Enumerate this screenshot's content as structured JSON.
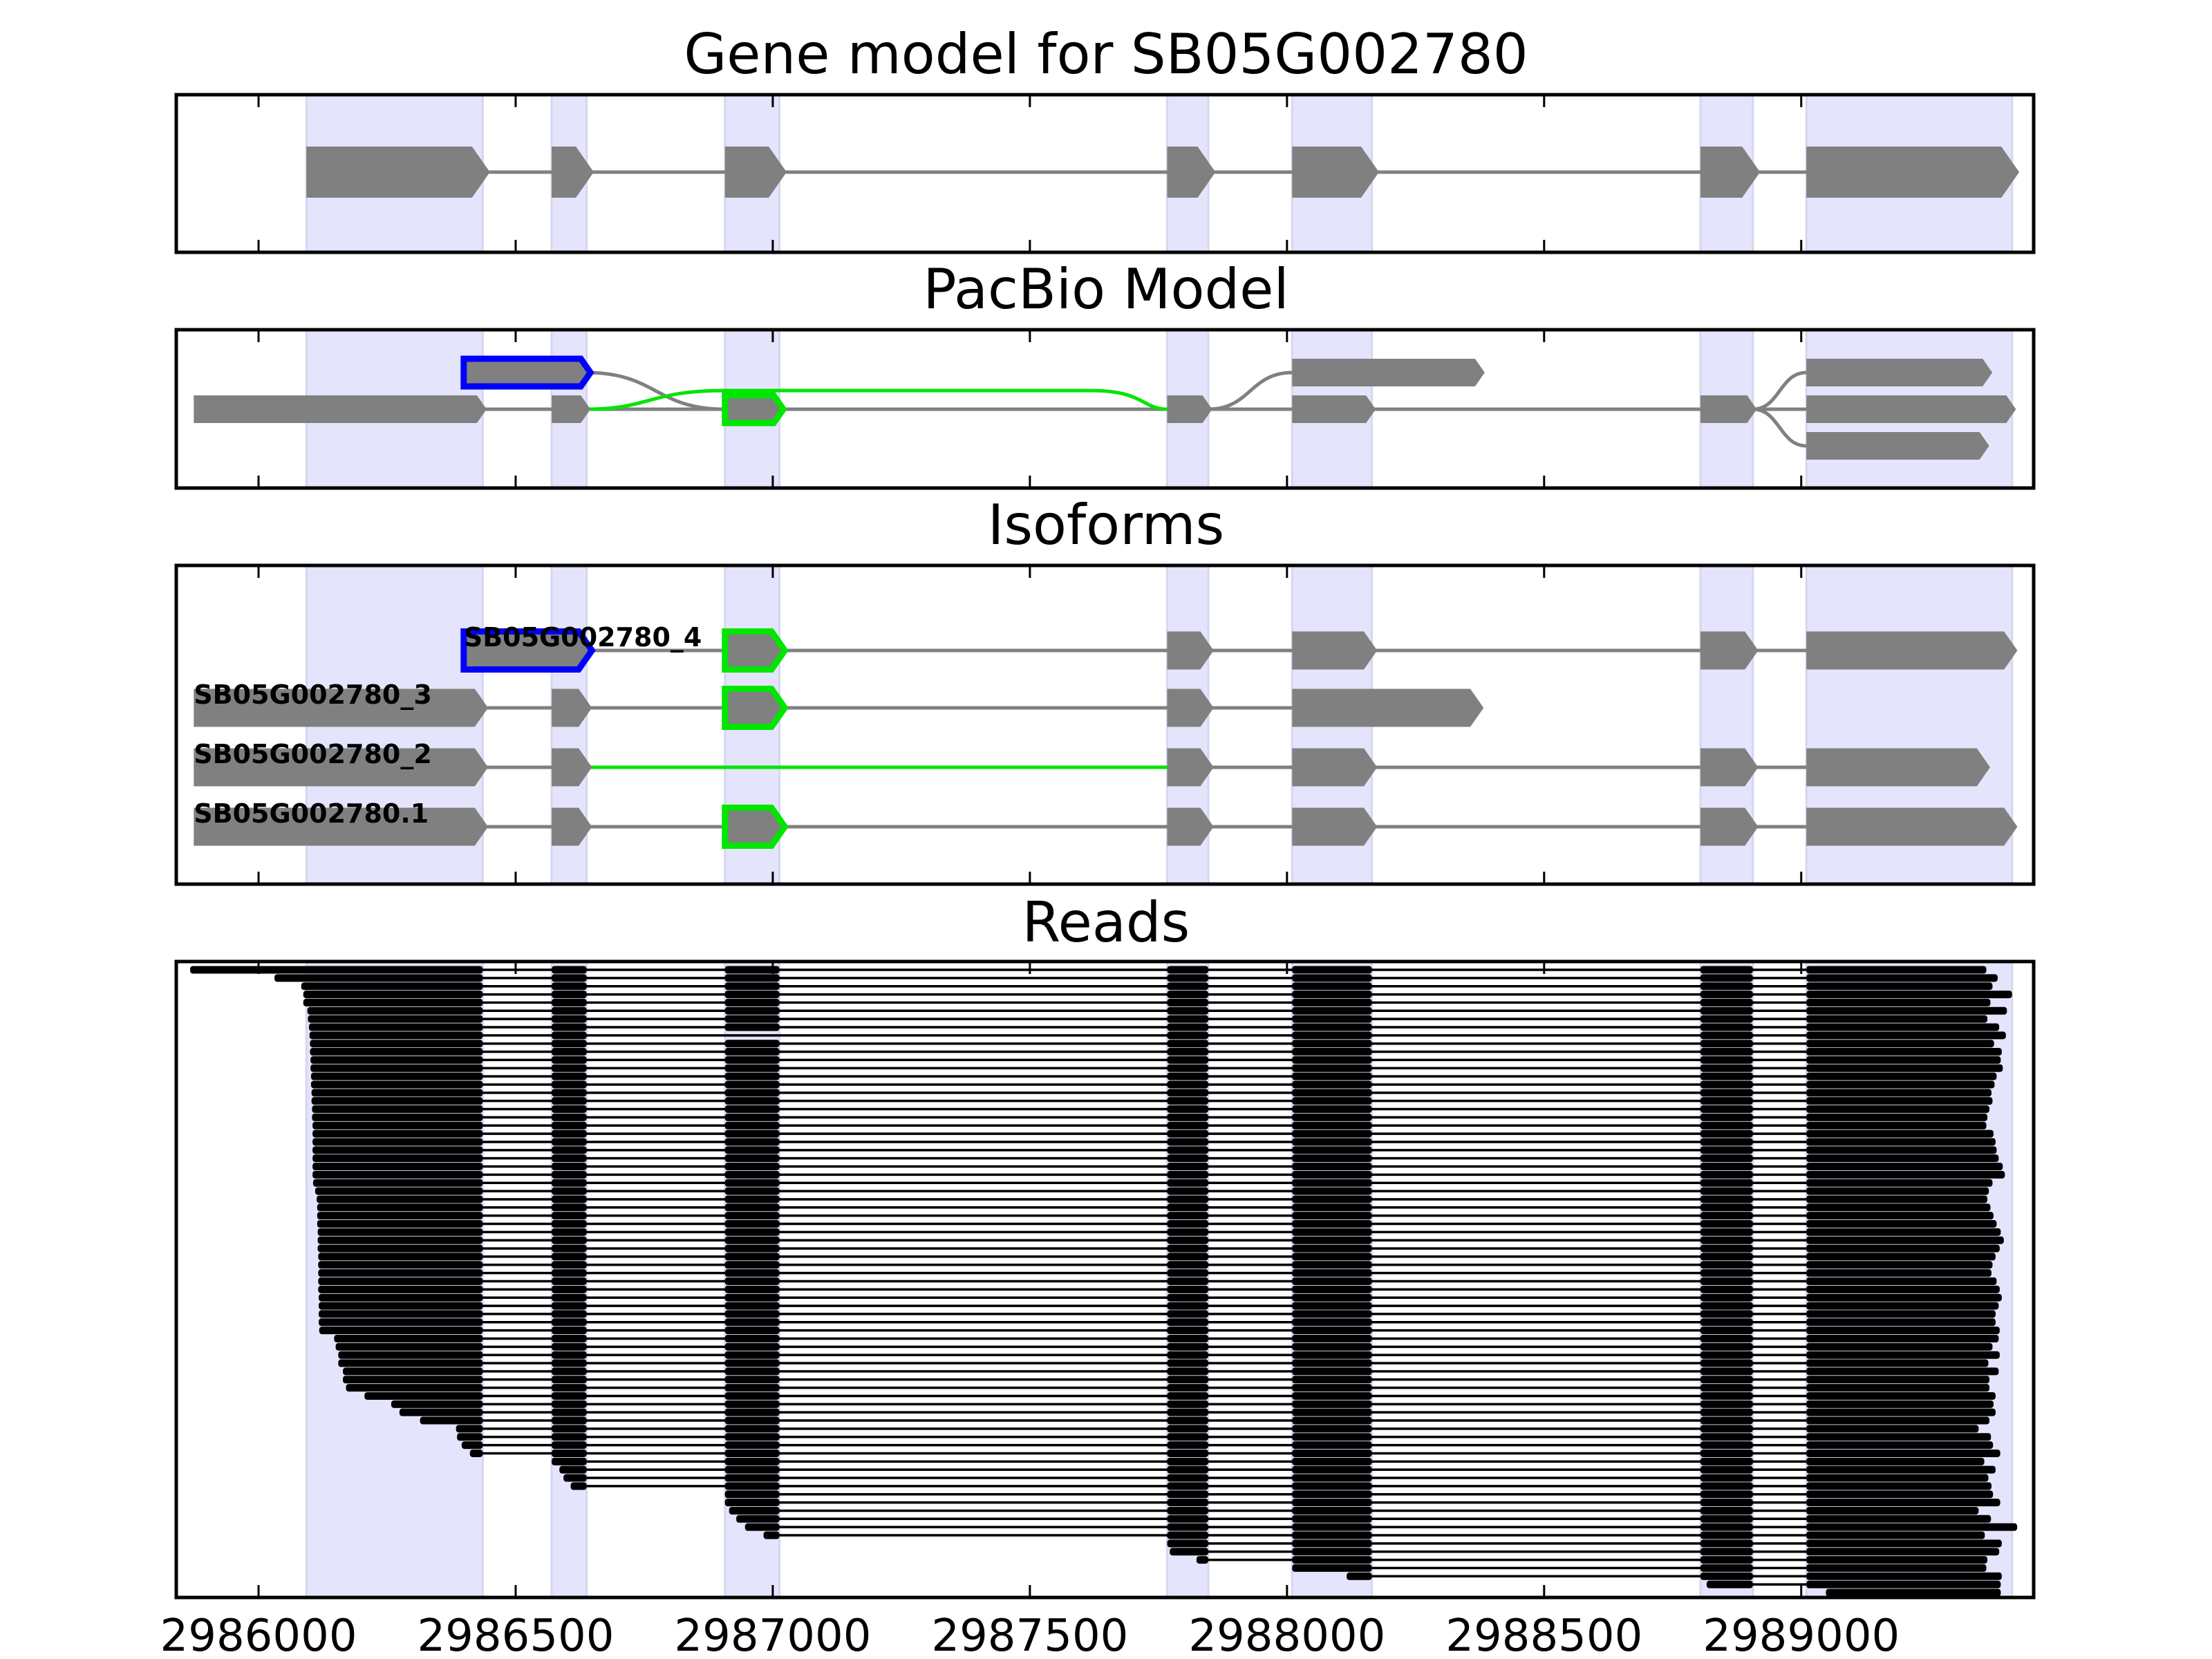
{
  "chart_data": {
    "type": "gene-track",
    "xlim": [
      2985840,
      2989452
    ],
    "x_ticks": [
      2986000,
      2986500,
      2987000,
      2987500,
      2988000,
      2988500,
      2989000
    ],
    "x_tick_labels": [
      "2986000",
      "2986500",
      "2987000",
      "2987500",
      "2988000",
      "2988500",
      "2989000"
    ],
    "colors": {
      "exon": "#808080",
      "shade": "#e4e4fd",
      "highlight_blue": "#0000ff",
      "highlight_green": "#00e600",
      "read": "#000000"
    },
    "exons": [
      [
        2986093,
        2986436
      ],
      [
        2986570,
        2986638
      ],
      [
        2986907,
        2987013
      ],
      [
        2987767,
        2987847
      ],
      [
        2988010,
        2988165
      ],
      [
        2988804,
        2988906
      ],
      [
        2989010,
        2989410
      ]
    ],
    "panels": {
      "gene_model": {
        "title": "Gene model for SB05G002780"
      },
      "pacbio": {
        "title": "PacBio Model",
        "rows": [
          {
            "row": "top",
            "exons": [
              {
                "s": 2986399,
                "e": 2986638,
                "outline": "blue"
              },
              {
                "s": 2988010,
                "e": 2988377
              },
              {
                "s": 2989010,
                "e": 2989364
              }
            ]
          },
          {
            "row": "middle",
            "exons": [
              {
                "s": 2985874,
                "e": 2986436
              },
              {
                "s": 2986570,
                "e": 2986638
              },
              {
                "s": 2986907,
                "e": 2987013,
                "outline": "green"
              },
              {
                "s": 2987767,
                "e": 2987847
              },
              {
                "s": 2988010,
                "e": 2988165
              },
              {
                "s": 2988804,
                "e": 2988906
              },
              {
                "s": 2989010,
                "e": 2989410
              }
            ]
          },
          {
            "row": "bottom",
            "exons": [
              {
                "s": 2989010,
                "e": 2989358
              }
            ]
          }
        ]
      },
      "isoforms": {
        "title": "Isoforms",
        "items": [
          {
            "name": "SB05G002780_4",
            "exons": [
              {
                "s": 2986399,
                "e": 2986638,
                "outline": "blue"
              },
              {
                "s": 2986907,
                "e": 2987013,
                "outline": "green"
              },
              {
                "s": 2987767,
                "e": 2987847
              },
              {
                "s": 2988010,
                "e": 2988165
              },
              {
                "s": 2988804,
                "e": 2988906
              },
              {
                "s": 2989010,
                "e": 2989410
              }
            ]
          },
          {
            "name": "SB05G002780_3",
            "exons": [
              {
                "s": 2985874,
                "e": 2986436
              },
              {
                "s": 2986570,
                "e": 2986638
              },
              {
                "s": 2986907,
                "e": 2987013,
                "outline": "green"
              },
              {
                "s": 2987767,
                "e": 2987847
              },
              {
                "s": 2988010,
                "e": 2988372
              }
            ]
          },
          {
            "name": "SB05G002780_2",
            "green_intron": [
              2986638,
              2987767
            ],
            "exons": [
              {
                "s": 2985874,
                "e": 2986436
              },
              {
                "s": 2986570,
                "e": 2986638
              },
              {
                "s": 2987767,
                "e": 2987847
              },
              {
                "s": 2988010,
                "e": 2988165
              },
              {
                "s": 2988804,
                "e": 2988906
              },
              {
                "s": 2989010,
                "e": 2989357
              }
            ]
          },
          {
            "name": "SB05G002780.1",
            "exons": [
              {
                "s": 2985874,
                "e": 2986436
              },
              {
                "s": 2986570,
                "e": 2986638
              },
              {
                "s": 2986907,
                "e": 2987013,
                "outline": "green"
              },
              {
                "s": 2987767,
                "e": 2987847
              },
              {
                "s": 2988010,
                "e": 2988165
              },
              {
                "s": 2988804,
                "e": 2988906
              },
              {
                "s": 2989010,
                "e": 2989410
              }
            ]
          }
        ]
      },
      "reads": {
        "title": "Reads",
        "skip_exon3_rows": [
          8
        ],
        "starts": [
          2985867,
          2986031,
          2986083,
          2986087,
          2986087,
          2986095,
          2986096,
          2986098,
          2986099,
          2986100,
          2986100,
          2986101,
          2986101,
          2986102,
          2986102,
          2986103,
          2986103,
          2986104,
          2986104,
          2986105,
          2986105,
          2986105,
          2986105,
          2986105,
          2986105,
          2986105,
          2986106,
          2986110,
          2986113,
          2986114,
          2986114,
          2986114,
          2986115,
          2986115,
          2986115,
          2986116,
          2986116,
          2986116,
          2986116,
          2986116,
          2986117,
          2986117,
          2986117,
          2986117,
          2986118,
          2986147,
          2986150,
          2986155,
          2986155,
          2986164,
          2986164,
          2986170,
          2986206,
          2986258,
          2986274,
          2986314,
          2986384,
          2986386,
          2986395,
          2986411,
          2986563,
          2986585,
          2986593,
          2986607,
          2986902,
          2986902,
          2986915,
          2986929,
          2986946,
          2986982,
          2987763,
          2987772,
          2987824,
          2988007,
          2988116,
          2988816,
          2989048
        ],
        "ends": [
          2989360,
          2989382,
          2989372,
          2989410,
          2989368,
          2989400,
          2989362,
          2989385,
          2989398,
          2989375,
          2989390,
          2989388,
          2989392,
          2989380,
          2989376,
          2989370,
          2989372,
          2989366,
          2989362,
          2989360,
          2989374,
          2989378,
          2989380,
          2989384,
          2989392,
          2989396,
          2989372,
          2989365,
          2989362,
          2989368,
          2989374,
          2989380,
          2989388,
          2989394,
          2989386,
          2989378,
          2989372,
          2989370,
          2989380,
          2989386,
          2989390,
          2989384,
          2989378,
          2989378,
          2989386,
          2989384,
          2989372,
          2989386,
          2989364,
          2989384,
          2989366,
          2989366,
          2989378,
          2989374,
          2989378,
          2989366,
          2989345,
          2989369,
          2989373,
          2989387,
          2989356,
          2989378,
          2989364,
          2989370,
          2989373,
          2989387,
          2989345,
          2989369,
          2989420,
          2989357,
          2989390,
          2989385,
          2989362,
          2989360,
          2989390,
          2989388,
          2989388
        ]
      }
    }
  }
}
